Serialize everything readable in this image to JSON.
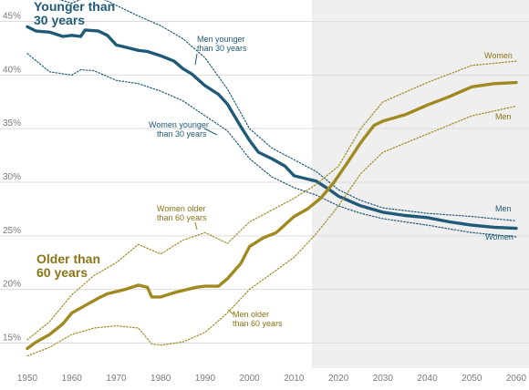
{
  "chart_data": {
    "type": "line",
    "x_range": [
      1950,
      2060
    ],
    "y_range": [
      13,
      47
    ],
    "projection_start": 2014,
    "grid": true,
    "x_ticks": [
      "1950",
      "1960",
      "1970",
      "1980",
      "1990",
      "2000",
      "2010",
      "2020",
      "2030",
      "2040",
      "2050",
      "2060"
    ],
    "y_ticks": [
      "15%",
      "20%",
      "25%",
      "30%",
      "35%",
      "40%",
      "45%"
    ],
    "x_tick_values": [
      1950,
      1960,
      1970,
      1980,
      1990,
      2000,
      2010,
      2020,
      2030,
      2040,
      2050,
      2060
    ],
    "y_tick_values": [
      15,
      20,
      25,
      30,
      35,
      40,
      45
    ],
    "series": [
      {
        "key": "young_total",
        "color": "#1f5a78",
        "style": "thick",
        "x": [
          1950,
          1952,
          1955,
          1958,
          1960,
          1962,
          1963,
          1966,
          1968,
          1970,
          1973,
          1975,
          1977,
          1980,
          1983,
          1985,
          1987,
          1990,
          1993,
          1995,
          1998,
          2000,
          2002,
          2005,
          2008,
          2010,
          2013,
          2015,
          2018,
          2020,
          2025,
          2030,
          2035,
          2040,
          2045,
          2050,
          2055,
          2060
        ],
        "values": [
          44.5,
          44.1,
          44.0,
          43.6,
          43.7,
          43.6,
          44.2,
          44.1,
          43.7,
          42.8,
          42.5,
          42.3,
          42.2,
          41.8,
          41.3,
          40.6,
          40.1,
          39.0,
          38.2,
          37.3,
          35.2,
          33.9,
          32.8,
          32.2,
          31.5,
          30.6,
          30.3,
          30.1,
          29.3,
          28.7,
          27.8,
          27.2,
          26.9,
          26.7,
          26.3,
          26.0,
          25.8,
          25.7
        ]
      },
      {
        "key": "young_men",
        "color": "#1f5a78",
        "style": "dotted",
        "x": [
          1950,
          1955,
          1960,
          1963,
          1966,
          1970,
          1975,
          1980,
          1985,
          1990,
          1995,
          2000,
          2005,
          2010,
          2015,
          2020,
          2025,
          2030,
          2040,
          2050,
          2060
        ],
        "values": [
          47.5,
          47.3,
          46.7,
          47.2,
          47.3,
          46.5,
          45.5,
          44.6,
          43.4,
          41.6,
          38.7,
          35.0,
          33.2,
          32.1,
          31.0,
          29.3,
          28.3,
          27.6,
          27.1,
          26.8,
          26.4
        ]
      },
      {
        "key": "young_women",
        "color": "#1f5a78",
        "style": "dotted",
        "x": [
          1950,
          1955,
          1960,
          1962,
          1965,
          1970,
          1975,
          1980,
          1985,
          1990,
          1995,
          2000,
          2005,
          2010,
          2015,
          2020,
          2025,
          2030,
          2040,
          2050,
          2060
        ],
        "values": [
          42.0,
          40.3,
          40.0,
          40.5,
          40.4,
          39.5,
          39.2,
          38.5,
          37.6,
          36.2,
          34.8,
          32.2,
          30.5,
          29.5,
          28.8,
          27.8,
          27.1,
          26.6,
          26.0,
          25.3,
          24.9
        ]
      },
      {
        "key": "old_total",
        "color": "#a08a20",
        "style": "thick",
        "x": [
          1950,
          1952,
          1955,
          1958,
          1960,
          1963,
          1966,
          1968,
          1970,
          1972,
          1975,
          1977,
          1978,
          1980,
          1983,
          1986,
          1988,
          1990,
          1993,
          1995,
          1998,
          2000,
          2003,
          2006,
          2010,
          2013,
          2016,
          2019,
          2022,
          2025,
          2028,
          2030,
          2035,
          2040,
          2045,
          2050,
          2055,
          2060
        ],
        "values": [
          14.5,
          15.1,
          15.8,
          16.8,
          17.8,
          18.5,
          19.2,
          19.6,
          19.8,
          20.0,
          20.4,
          20.2,
          19.3,
          19.3,
          19.7,
          20.0,
          20.2,
          20.3,
          20.3,
          21.0,
          22.4,
          24.0,
          24.8,
          25.3,
          26.8,
          27.5,
          28.5,
          30.0,
          31.8,
          33.7,
          35.3,
          35.7,
          36.3,
          37.2,
          38.0,
          38.9,
          39.2,
          39.3
        ]
      },
      {
        "key": "old_women",
        "color": "#a08a20",
        "style": "dotted",
        "x": [
          1950,
          1955,
          1960,
          1965,
          1970,
          1975,
          1980,
          1985,
          1990,
          1995,
          2000,
          2005,
          2010,
          2015,
          2020,
          2025,
          2030,
          2035,
          2040,
          2050,
          2060
        ],
        "values": [
          15.3,
          17.0,
          19.5,
          21.3,
          22.5,
          24.2,
          23.3,
          24.6,
          25.3,
          24.3,
          26.3,
          27.4,
          28.5,
          29.8,
          31.5,
          35.0,
          37.5,
          38.4,
          39.3,
          40.9,
          41.3
        ]
      },
      {
        "key": "old_men",
        "color": "#a08a20",
        "style": "dotted",
        "x": [
          1950,
          1955,
          1960,
          1965,
          1970,
          1975,
          1978,
          1980,
          1985,
          1990,
          1995,
          2000,
          2005,
          2010,
          2015,
          2020,
          2025,
          2030,
          2040,
          2050,
          2060
        ],
        "values": [
          13.8,
          14.6,
          15.8,
          16.4,
          16.6,
          16.4,
          14.9,
          14.8,
          15.1,
          16.0,
          17.8,
          20.0,
          21.5,
          23.0,
          25.2,
          27.8,
          30.8,
          32.8,
          34.5,
          36.2,
          37.1
        ]
      }
    ],
    "annotations": {
      "young_title": [
        "Younger than",
        "30 years"
      ],
      "old_title": [
        "Older than",
        "60 years"
      ],
      "men_younger": [
        "Men younger",
        "than 30 years"
      ],
      "women_younger": [
        "Women younger",
        "than 30 years"
      ],
      "women_older": [
        "Women older",
        "than 60 years"
      ],
      "men_older": [
        "Men older",
        "than 60 years"
      ],
      "men_end_blue": "Men",
      "women_end_blue": "Women",
      "women_end_gold": "Women",
      "men_end_gold": "Men"
    }
  }
}
